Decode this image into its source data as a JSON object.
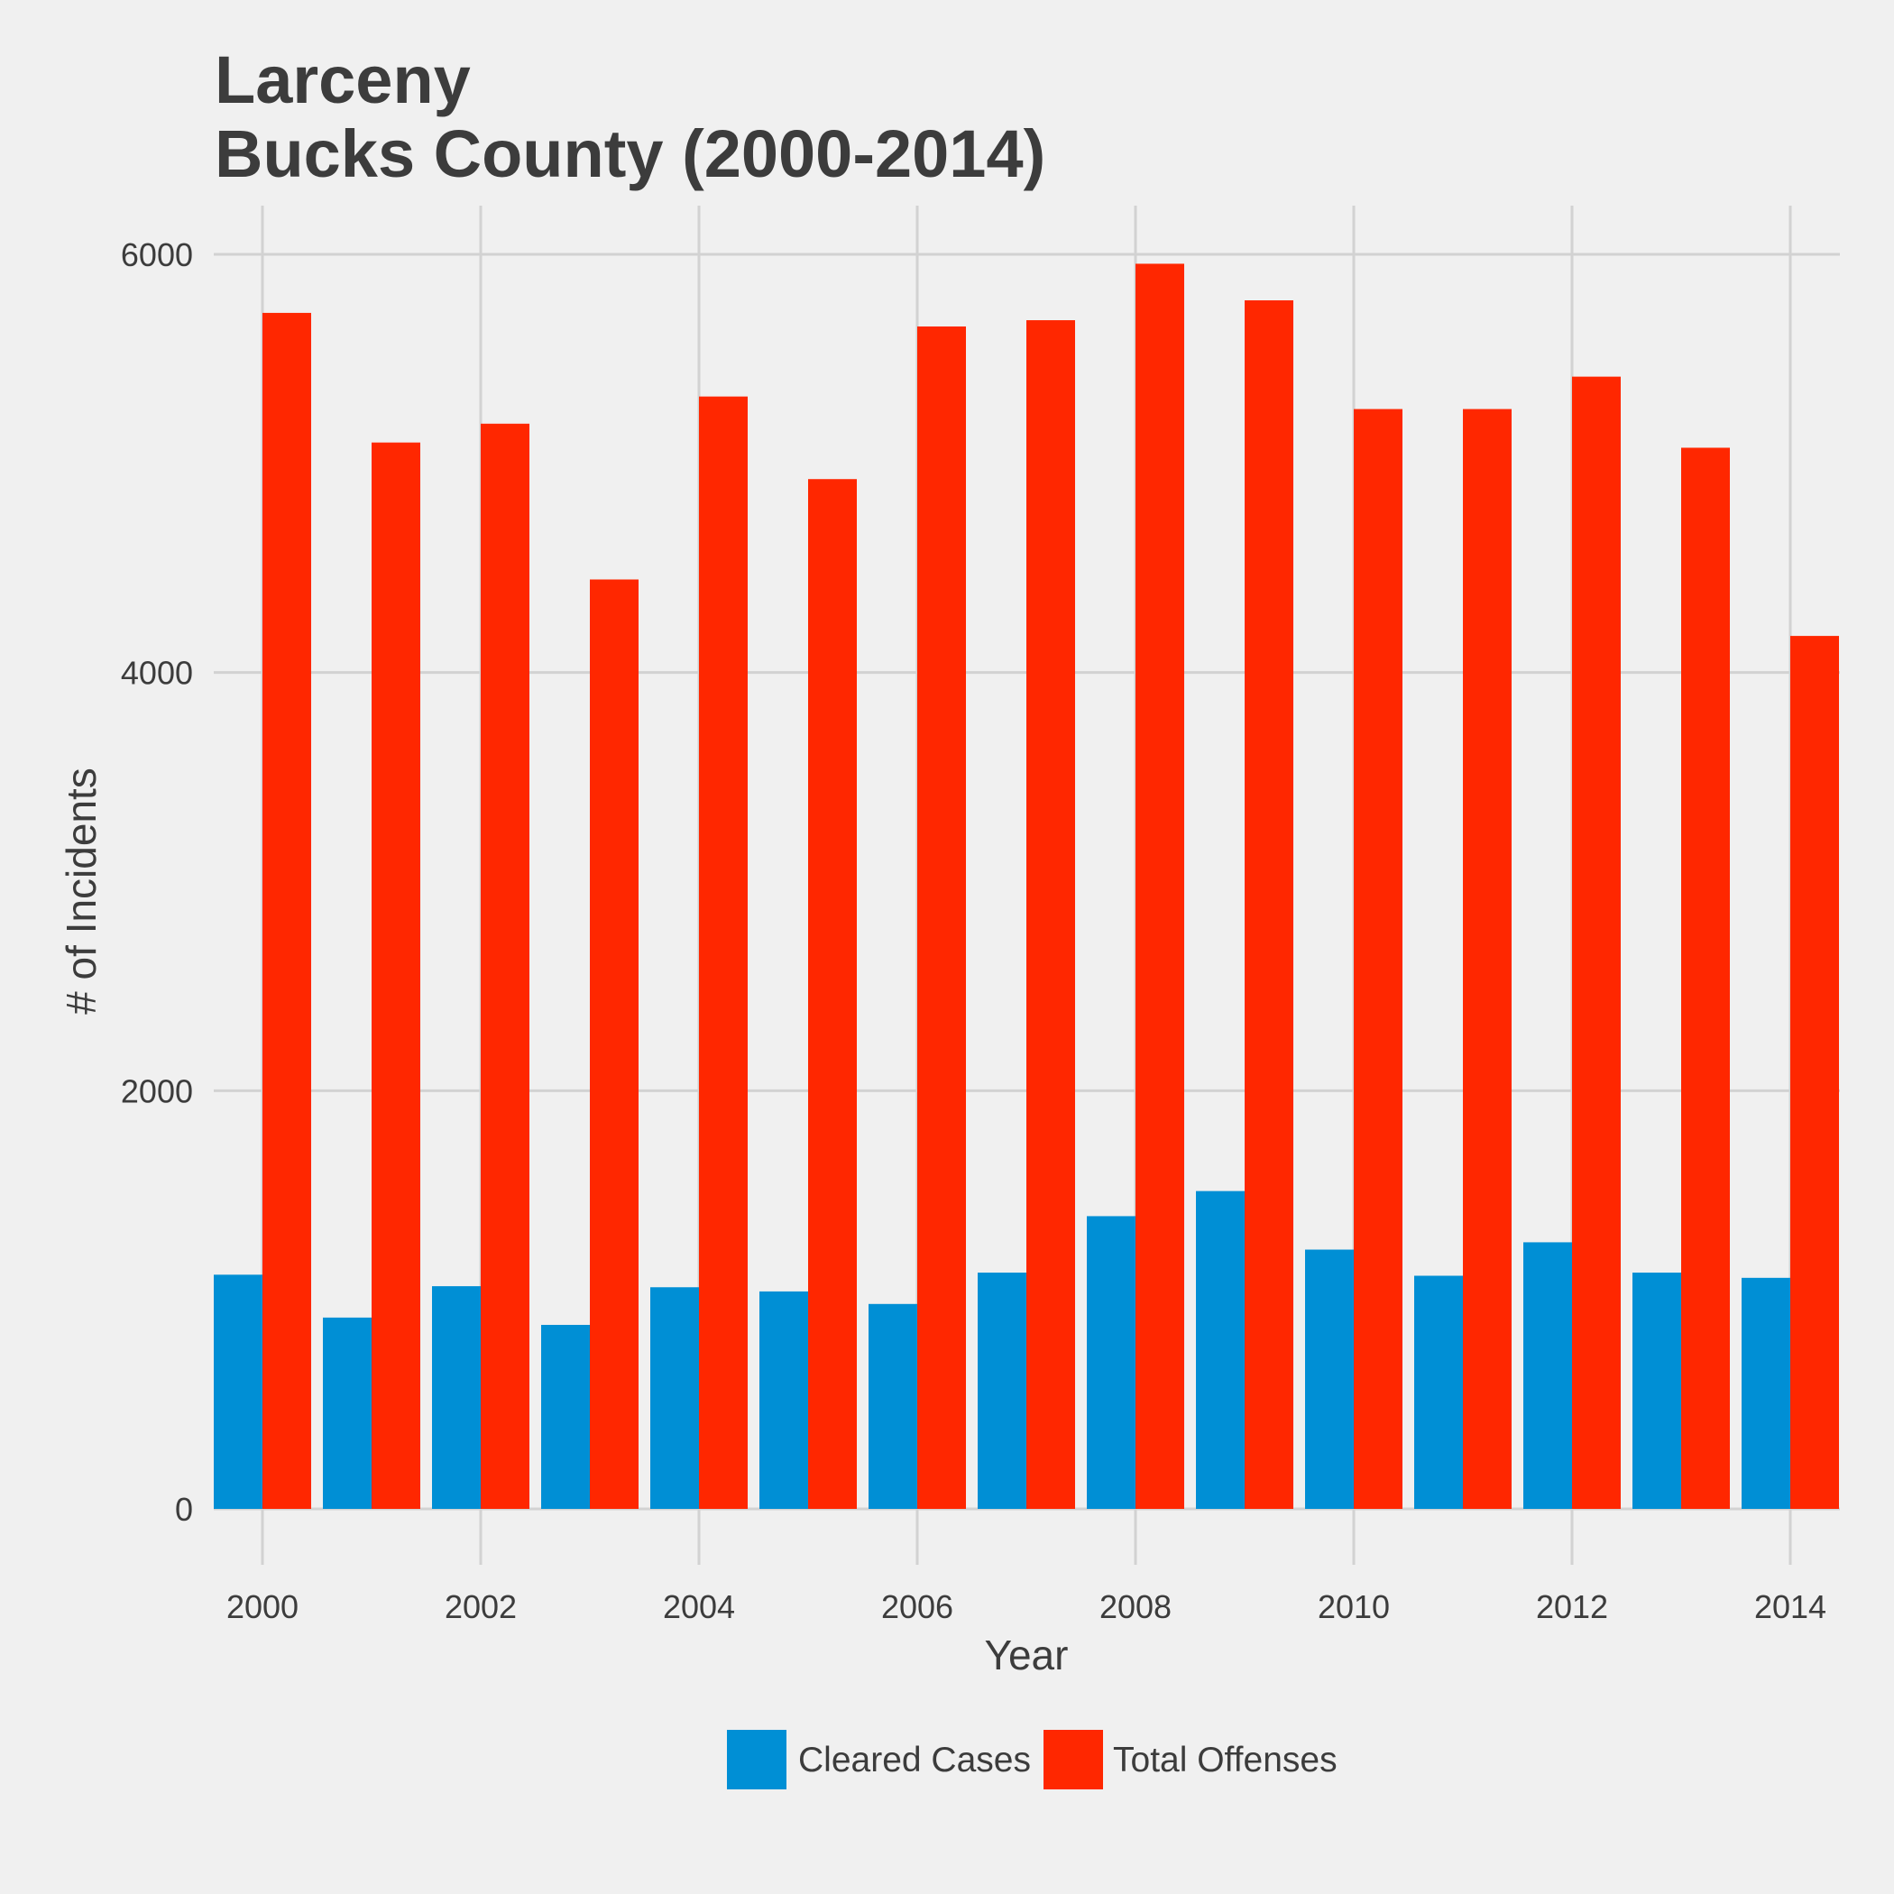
{
  "chart_data": {
    "type": "bar",
    "title_lines": [
      "Larceny",
      "Bucks County (2000-2014)"
    ],
    "xlabel": "Year",
    "ylabel": "# of Incidents",
    "categories": [
      "2000",
      "2001",
      "2002",
      "2003",
      "2004",
      "2005",
      "2006",
      "2007",
      "2008",
      "2009",
      "2010",
      "2011",
      "2012",
      "2013",
      "2014"
    ],
    "x_tick_labels": [
      "2000",
      "2002",
      "2004",
      "2006",
      "2008",
      "2010",
      "2012",
      "2014"
    ],
    "y_ticks": [
      0,
      2000,
      4000,
      6000
    ],
    "ylim": [
      0,
      6200
    ],
    "grid": true,
    "legend_position": "bottom",
    "series": [
      {
        "name": "Cleared Cases",
        "color": "#008fd5",
        "values": [
          1120,
          915,
          1065,
          880,
          1060,
          1040,
          980,
          1130,
          1400,
          1520,
          1240,
          1115,
          1275,
          1130,
          1105
        ]
      },
      {
        "name": "Total Offenses",
        "color": "#ff2700",
        "values": [
          5720,
          5100,
          5190,
          4445,
          5320,
          4925,
          5655,
          5685,
          5955,
          5780,
          5260,
          5260,
          5415,
          5075,
          4175
        ]
      }
    ]
  }
}
